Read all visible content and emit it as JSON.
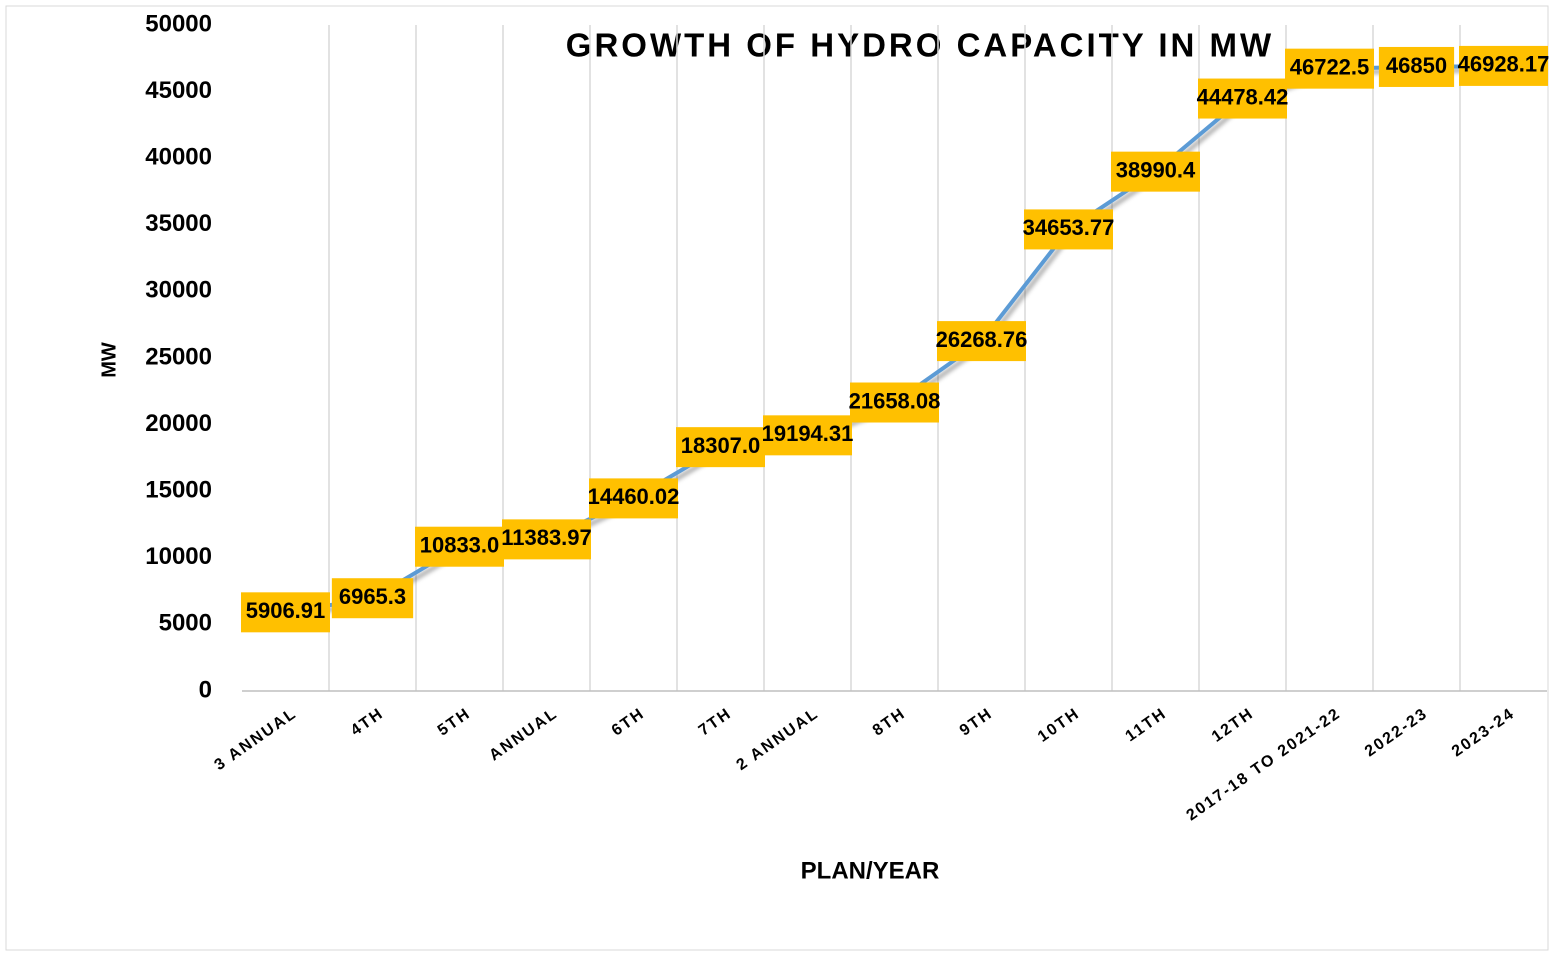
{
  "chart_data": {
    "type": "line",
    "title": "GROWTH OF HYDRO CAPACITY IN MW",
    "x_label": "PLAN/YEAR",
    "y_label": "MW",
    "categories": [
      "3 ANNUAL",
      "4TH",
      "5TH",
      "ANNUAL",
      "6TH",
      "7TH",
      "2 ANNUAL",
      "8TH",
      "9TH",
      "10TH",
      "11TH",
      "12TH",
      "2017-18 TO 2021-22",
      "2022-23",
      "2023-24"
    ],
    "series": [
      {
        "name": "MW",
        "color": "#5b9bd5",
        "values": [
          5906.91,
          6965.3,
          10833,
          11383.97,
          14460.02,
          18307,
          19194.31,
          21658.08,
          26268.76,
          34653.77,
          38990.4,
          44478.42,
          46722.5,
          46850,
          46928.17
        ],
        "value_labels": [
          "5906.91",
          "6965.3",
          "10833.0",
          "11383.97",
          "14460.02",
          "18307.0",
          "19194.31",
          "21658.08",
          "26268.76",
          "34653.77",
          "38990.4",
          "44478.42",
          "46722.5",
          "46850",
          "46928.17"
        ]
      }
    ],
    "label_color": "#ffc000",
    "ylim": [
      0,
      50000
    ],
    "yticks": [
      0,
      5000,
      10000,
      15000,
      20000,
      25000,
      30000,
      35000,
      40000,
      45000,
      50000
    ],
    "grid": true
  }
}
